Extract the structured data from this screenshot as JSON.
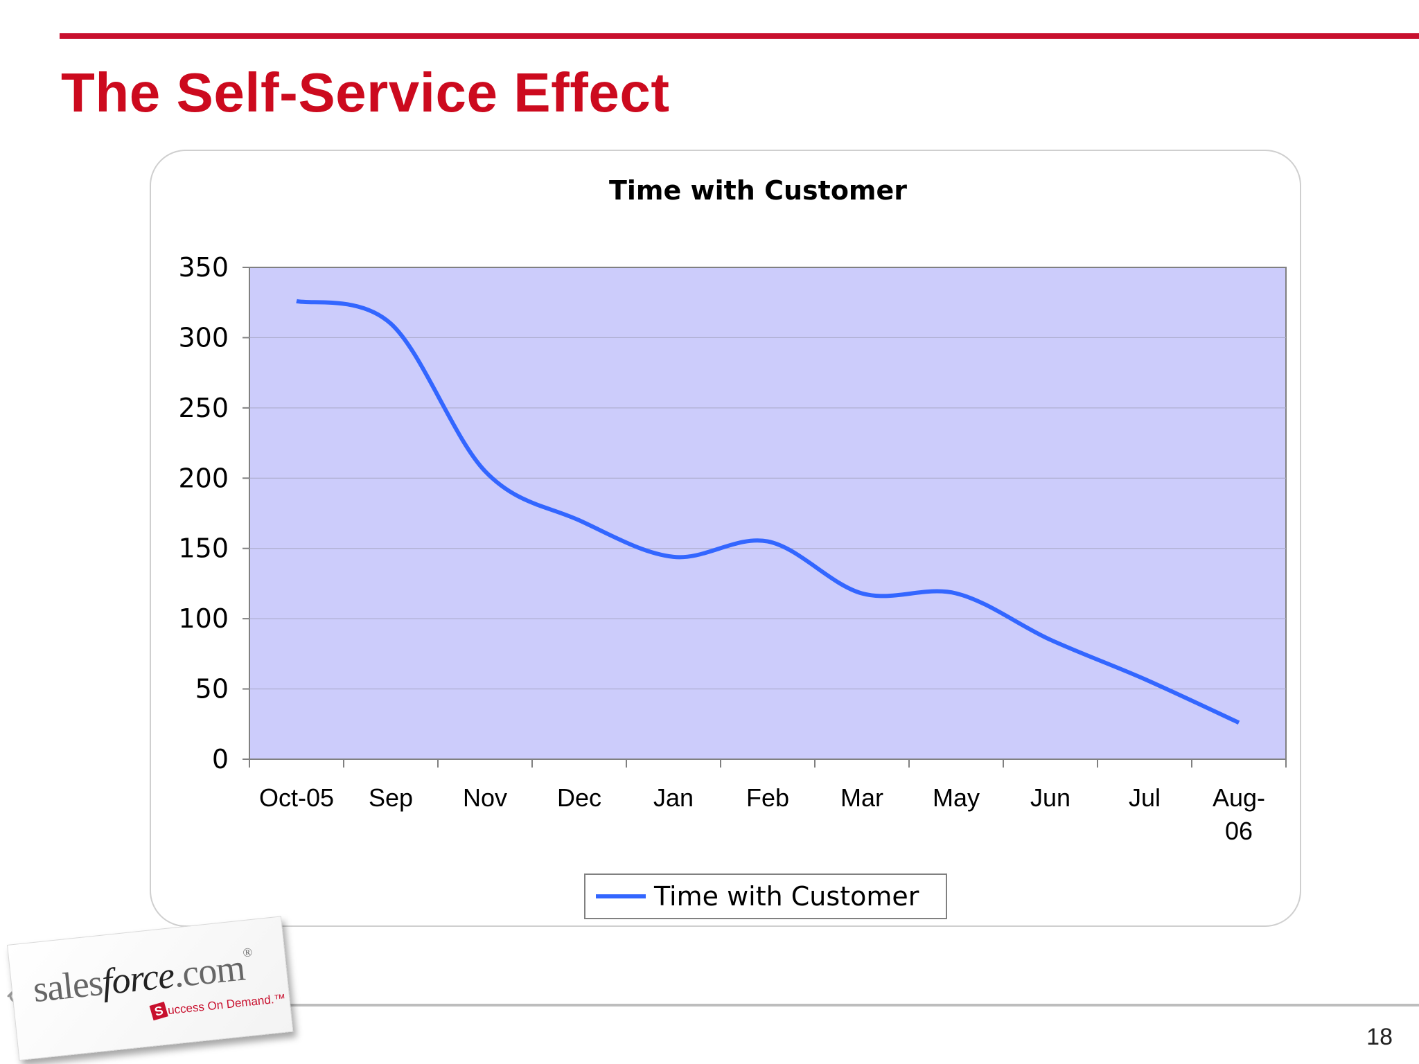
{
  "slide": {
    "title": "The Self-Service Effect",
    "page_number": "18"
  },
  "logo": {
    "word_pre": "sales",
    "word_force": "force",
    "word_post": ".com",
    "registered": "®",
    "tagline_badge": "S",
    "tagline": "uccess On Demand.",
    "tagline_tm": "™"
  },
  "colors": {
    "title": "#cc0a1e",
    "rule": "#c8102e",
    "plot_bg": "#ccccfb",
    "series_line": "#3366ff"
  },
  "chart_data": {
    "type": "line",
    "title": "Time with Customer",
    "xlabel": "",
    "ylabel": "",
    "ylim": [
      0,
      350
    ],
    "yticks": [
      0,
      50,
      100,
      150,
      200,
      250,
      300,
      350
    ],
    "categories": [
      "Oct-05",
      "Sep",
      "Nov",
      "Dec",
      "Jan",
      "Feb",
      "Mar",
      "May",
      "Jun",
      "Jul",
      "Aug-06"
    ],
    "grid": true,
    "legend": "bottom-center",
    "series": [
      {
        "name": "Time with Customer",
        "values": [
          326,
          310,
          205,
          170,
          144,
          155,
          118,
          118,
          85,
          57,
          26
        ]
      }
    ]
  }
}
